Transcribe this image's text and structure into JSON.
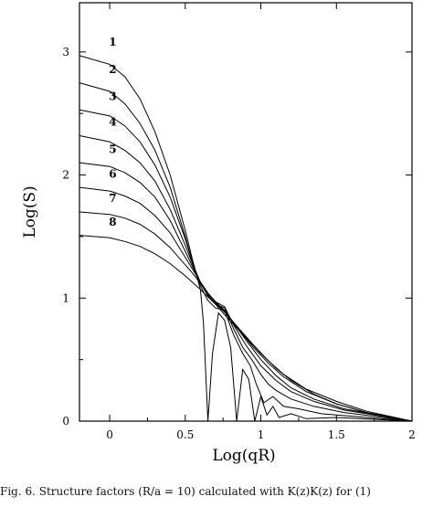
{
  "chart_data": {
    "type": "line",
    "xlabel": "Log(qR)",
    "ylabel": "Log(S)",
    "xlim": [
      -0.2,
      2.0
    ],
    "ylim": [
      0,
      3.4
    ],
    "xticks": [
      0,
      0.5,
      1,
      1.5,
      2
    ],
    "xtick_labels": [
      "0",
      "0.5",
      "1",
      "1.5",
      "2"
    ],
    "yticks": [
      0,
      1,
      2,
      3
    ],
    "ytick_labels": [
      "0",
      "1",
      "2",
      "3"
    ],
    "grid": false,
    "legend": "inline numeric labels at left end of each curve",
    "line_color": "#000000",
    "series": [
      {
        "name": "1",
        "x": [
          -0.2,
          0.0,
          0.1,
          0.2,
          0.3,
          0.4,
          0.5,
          0.55,
          0.6,
          0.62,
          0.65,
          0.68,
          0.72,
          0.76,
          0.8,
          0.84,
          0.88,
          0.92,
          0.96,
          1.0,
          1.04,
          1.08,
          1.12,
          1.2,
          1.3,
          1.5,
          2.0
        ],
        "y": [
          2.97,
          2.9,
          2.8,
          2.62,
          2.35,
          2.0,
          1.55,
          1.3,
          1.07,
          0.8,
          0.0,
          0.55,
          0.88,
          0.82,
          0.6,
          0.0,
          0.42,
          0.34,
          0.0,
          0.2,
          0.05,
          0.12,
          0.03,
          0.06,
          0.02,
          0.03,
          0.0
        ]
      },
      {
        "name": "2",
        "x": [
          -0.2,
          0.0,
          0.1,
          0.2,
          0.3,
          0.4,
          0.5,
          0.55,
          0.6,
          0.65,
          0.7,
          0.76,
          0.82,
          0.88,
          0.93,
          0.97,
          1.02,
          1.08,
          1.15,
          1.25,
          1.4,
          1.6,
          2.0
        ],
        "y": [
          2.75,
          2.68,
          2.58,
          2.42,
          2.2,
          1.9,
          1.5,
          1.28,
          1.1,
          0.98,
          0.92,
          0.9,
          0.7,
          0.55,
          0.45,
          0.3,
          0.15,
          0.2,
          0.12,
          0.1,
          0.06,
          0.04,
          0.0
        ]
      },
      {
        "name": "3",
        "x": [
          -0.2,
          0.0,
          0.1,
          0.2,
          0.3,
          0.4,
          0.5,
          0.55,
          0.6,
          0.65,
          0.7,
          0.76,
          0.82,
          0.88,
          0.94,
          1.0,
          1.05,
          1.1,
          1.2,
          1.35,
          1.55,
          2.0
        ],
        "y": [
          2.53,
          2.48,
          2.4,
          2.27,
          2.08,
          1.82,
          1.48,
          1.28,
          1.12,
          1.02,
          0.95,
          0.92,
          0.75,
          0.6,
          0.5,
          0.38,
          0.3,
          0.25,
          0.18,
          0.12,
          0.07,
          0.0
        ]
      },
      {
        "name": "4",
        "x": [
          -0.2,
          0.0,
          0.1,
          0.2,
          0.3,
          0.4,
          0.5,
          0.55,
          0.6,
          0.65,
          0.7,
          0.76,
          0.82,
          0.9,
          1.0,
          1.1,
          1.2,
          1.35,
          1.55,
          2.0
        ],
        "y": [
          2.32,
          2.27,
          2.2,
          2.1,
          1.95,
          1.72,
          1.43,
          1.27,
          1.13,
          1.03,
          0.97,
          0.93,
          0.78,
          0.62,
          0.45,
          0.33,
          0.24,
          0.16,
          0.09,
          0.0
        ]
      },
      {
        "name": "5",
        "x": [
          -0.2,
          0.0,
          0.1,
          0.2,
          0.3,
          0.4,
          0.5,
          0.55,
          0.6,
          0.65,
          0.7,
          0.76,
          0.82,
          0.9,
          1.0,
          1.1,
          1.2,
          1.35,
          1.55,
          2.0
        ],
        "y": [
          2.1,
          2.07,
          2.02,
          1.94,
          1.82,
          1.63,
          1.38,
          1.25,
          1.13,
          1.04,
          0.97,
          0.9,
          0.8,
          0.66,
          0.5,
          0.37,
          0.27,
          0.18,
          0.1,
          0.0
        ]
      },
      {
        "name": "6",
        "x": [
          -0.2,
          0.0,
          0.1,
          0.2,
          0.3,
          0.4,
          0.5,
          0.55,
          0.6,
          0.65,
          0.7,
          0.78,
          0.85,
          0.95,
          1.05,
          1.15,
          1.3,
          1.5,
          1.7,
          2.0
        ],
        "y": [
          1.9,
          1.87,
          1.83,
          1.77,
          1.67,
          1.53,
          1.33,
          1.23,
          1.13,
          1.04,
          0.96,
          0.86,
          0.75,
          0.6,
          0.47,
          0.36,
          0.24,
          0.14,
          0.07,
          0.0
        ]
      },
      {
        "name": "7",
        "x": [
          -0.2,
          0.0,
          0.1,
          0.2,
          0.3,
          0.4,
          0.5,
          0.55,
          0.6,
          0.65,
          0.7,
          0.78,
          0.85,
          0.95,
          1.05,
          1.15,
          1.3,
          1.5,
          1.7,
          2.0
        ],
        "y": [
          1.7,
          1.68,
          1.65,
          1.6,
          1.52,
          1.41,
          1.27,
          1.2,
          1.12,
          1.04,
          0.97,
          0.86,
          0.76,
          0.62,
          0.49,
          0.38,
          0.26,
          0.16,
          0.08,
          0.0
        ]
      },
      {
        "name": "8",
        "x": [
          -0.2,
          0.0,
          0.1,
          0.2,
          0.3,
          0.4,
          0.5,
          0.6,
          0.7,
          0.8,
          0.9,
          1.0,
          1.1,
          1.2,
          1.35,
          1.5,
          1.7,
          2.0
        ],
        "y": [
          1.51,
          1.49,
          1.46,
          1.42,
          1.36,
          1.28,
          1.18,
          1.07,
          0.95,
          0.81,
          0.68,
          0.55,
          0.43,
          0.33,
          0.22,
          0.14,
          0.07,
          0.0
        ]
      }
    ]
  },
  "caption": "Fig. 6. Structure factors (R/a = 10) calculated with K(z)K(z) for (1)"
}
